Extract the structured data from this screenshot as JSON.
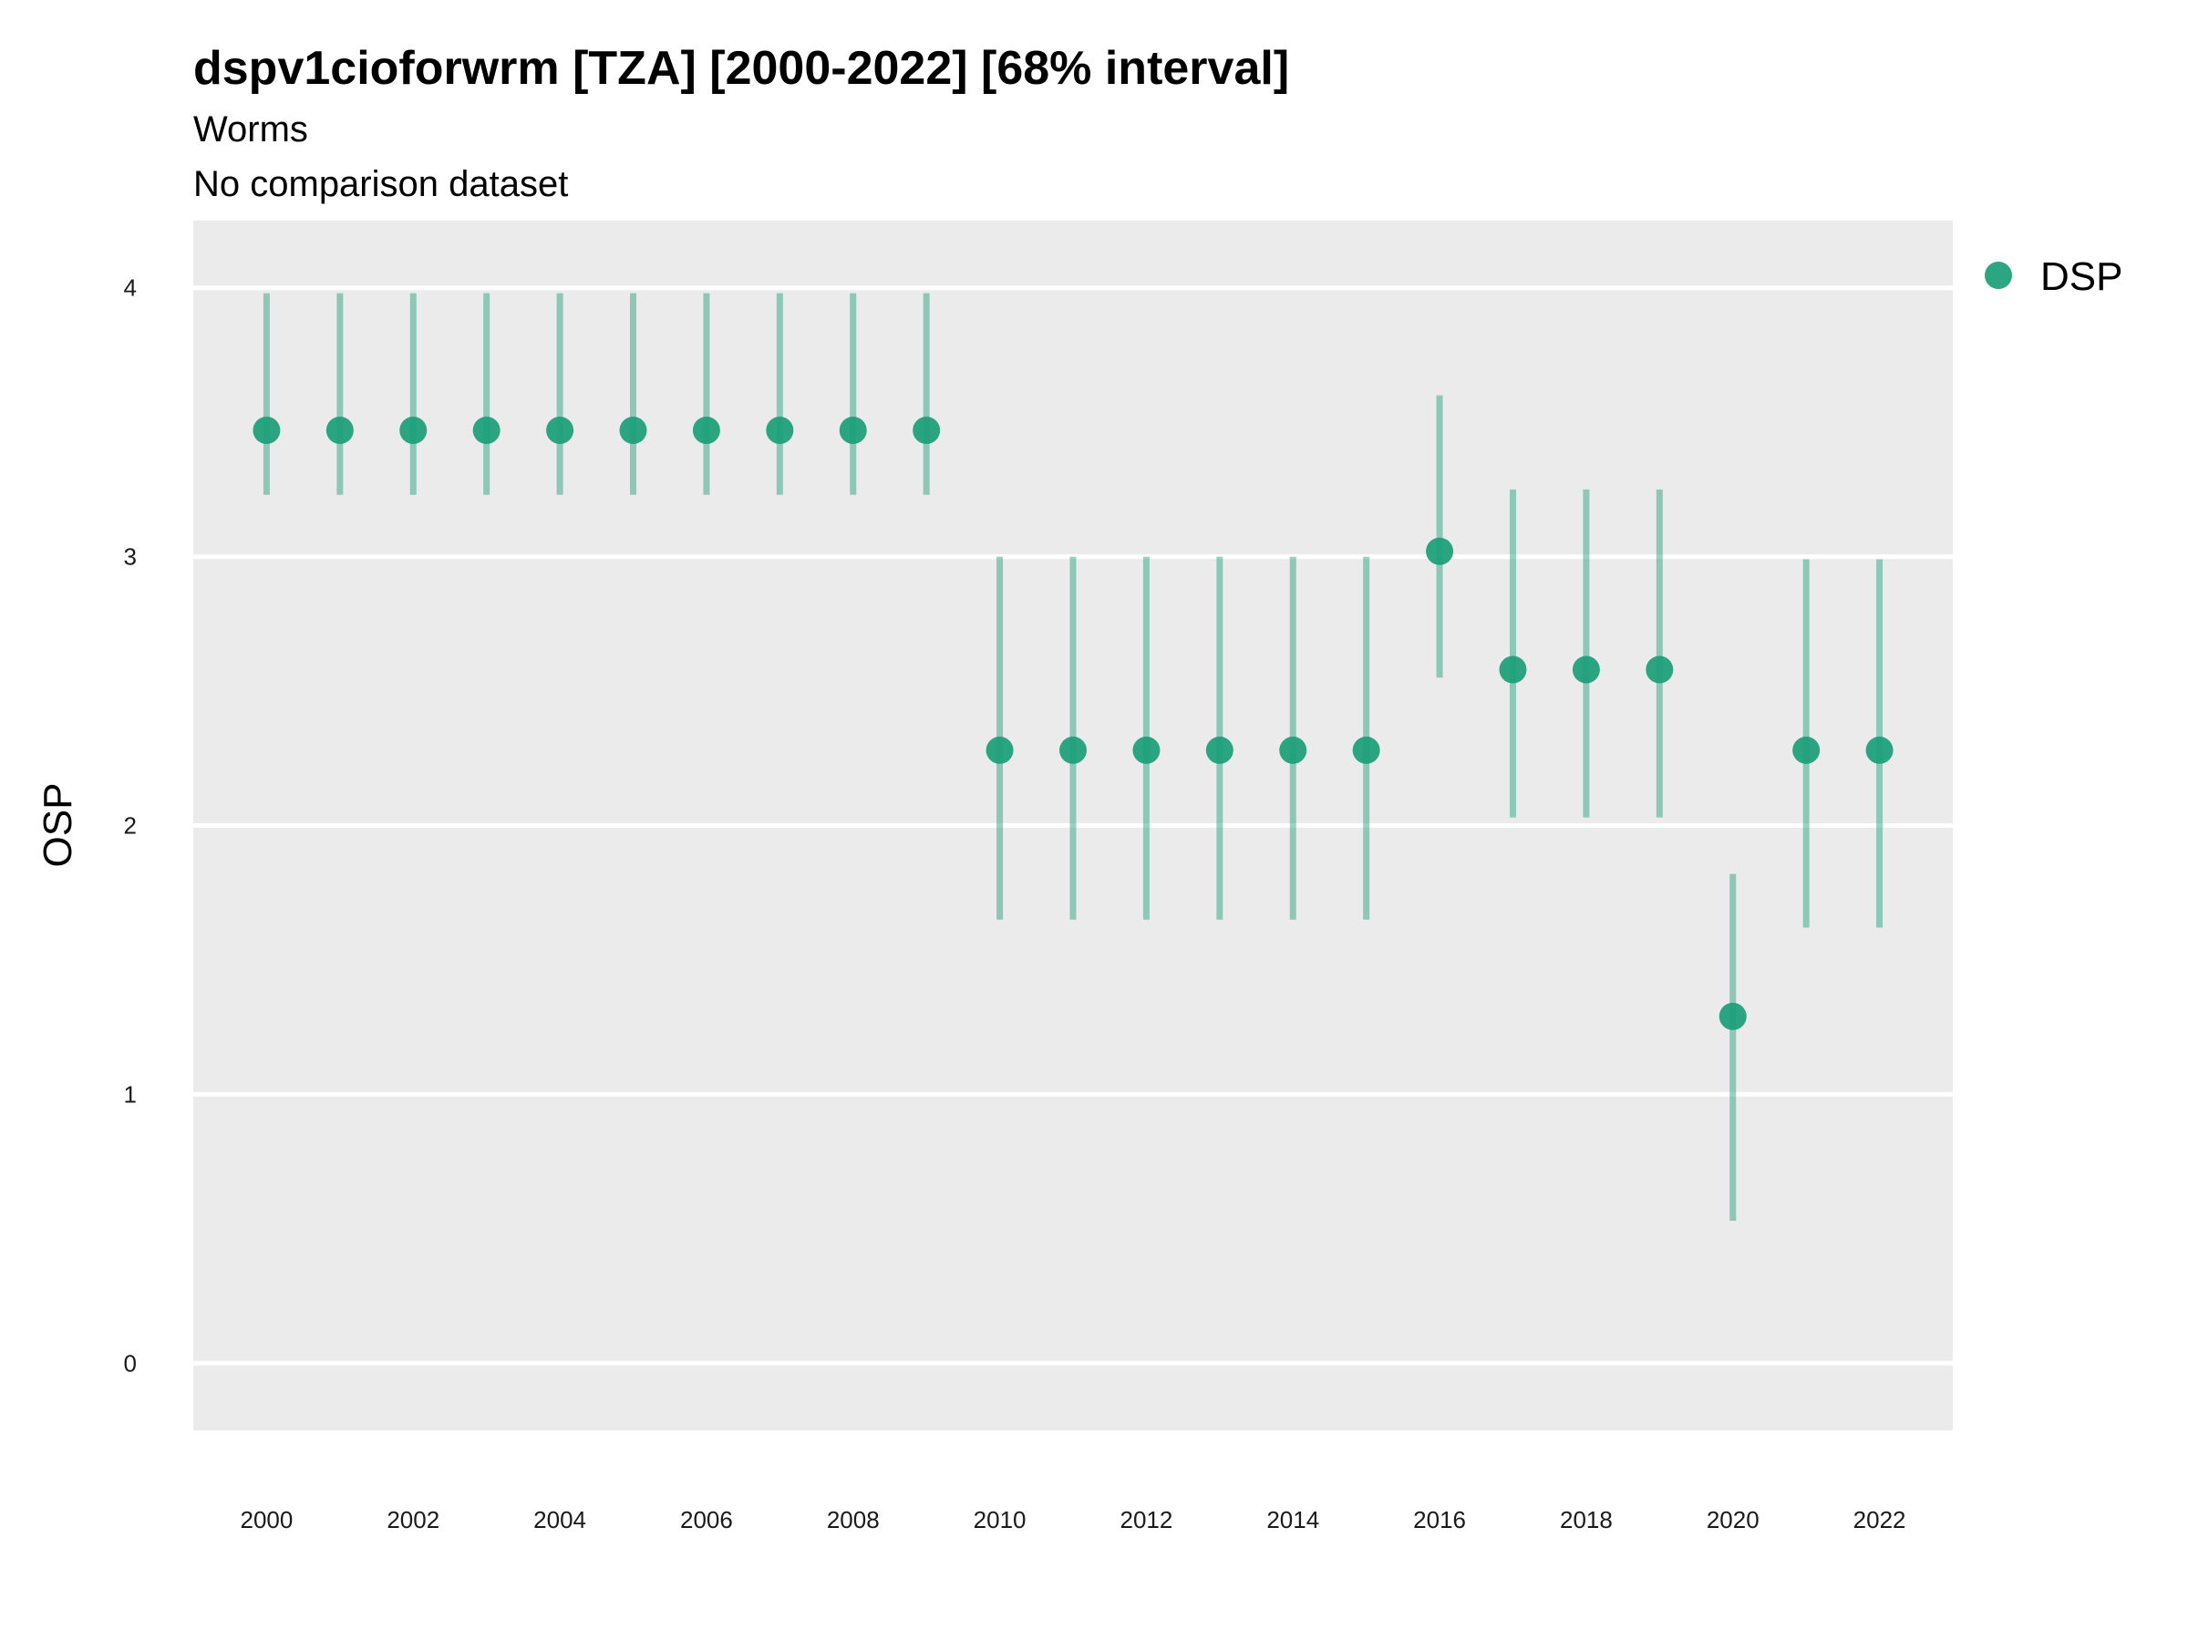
{
  "chart_data": {
    "type": "scatter",
    "title": "dspv1cioforwrm [TZA] [2000-2022] [68% interval]",
    "subtitle": "Worms",
    "caption_line": "No comparison dataset",
    "xlabel": "",
    "ylabel": "OSP",
    "xlim": [
      1999,
      2023
    ],
    "ylim": [
      -0.25,
      4.25
    ],
    "y_ticks": [
      0,
      1,
      2,
      3,
      4
    ],
    "x_ticks": [
      2000,
      2002,
      2004,
      2006,
      2008,
      2010,
      2012,
      2014,
      2016,
      2018,
      2020,
      2022
    ],
    "grid": "horizontal major only",
    "legend_position": "right",
    "panel_background": "#ebebeb",
    "series": [
      {
        "name": "DSP",
        "color": "#1a9e77",
        "x": [
          2000,
          2001,
          2002,
          2003,
          2004,
          2005,
          2006,
          2007,
          2008,
          2009,
          2010,
          2011,
          2012,
          2013,
          2014,
          2015,
          2016,
          2017,
          2018,
          2019,
          2020,
          2021,
          2022
        ],
        "y": [
          3.47,
          3.47,
          3.47,
          3.47,
          3.47,
          3.47,
          3.47,
          3.47,
          3.47,
          3.47,
          2.28,
          2.28,
          2.28,
          2.28,
          2.28,
          2.28,
          3.02,
          2.58,
          2.58,
          2.58,
          1.29,
          2.28,
          2.28
        ],
        "lower": [
          3.23,
          3.23,
          3.23,
          3.23,
          3.23,
          3.23,
          3.23,
          3.23,
          3.23,
          3.23,
          1.65,
          1.65,
          1.65,
          1.65,
          1.65,
          1.65,
          2.55,
          2.03,
          2.03,
          2.03,
          0.53,
          1.62,
          1.62
        ],
        "upper": [
          3.98,
          3.98,
          3.98,
          3.98,
          3.98,
          3.98,
          3.98,
          3.98,
          3.98,
          3.98,
          3.0,
          3.0,
          3.0,
          3.0,
          3.0,
          3.0,
          3.6,
          3.25,
          3.25,
          3.25,
          1.82,
          2.99,
          2.99
        ]
      }
    ]
  }
}
